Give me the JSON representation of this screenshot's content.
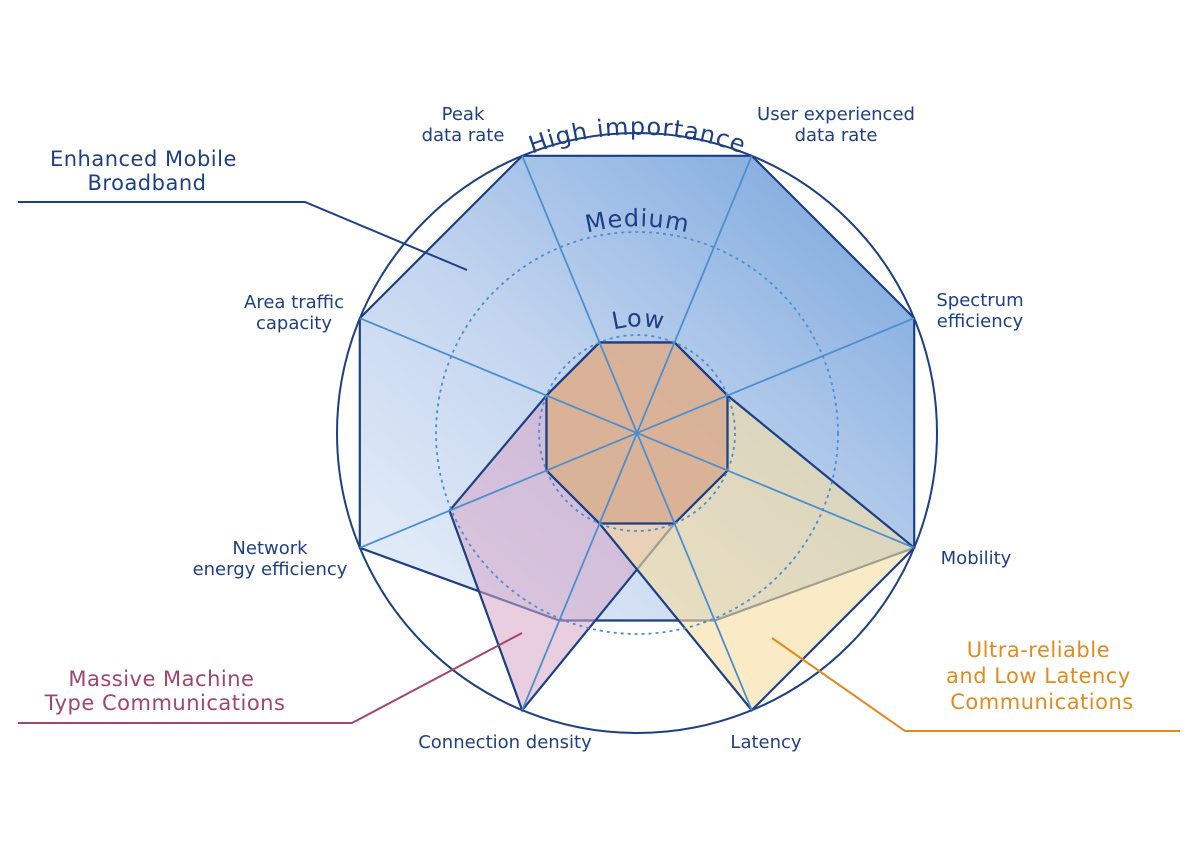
{
  "axes": [
    {
      "id": "peak",
      "lines": [
        "Peak",
        "data rate"
      ]
    },
    {
      "id": "user",
      "lines": [
        "User experienced",
        "data rate"
      ]
    },
    {
      "id": "spectrum",
      "lines": [
        "Spectrum",
        "efficiency"
      ]
    },
    {
      "id": "mobility",
      "lines": [
        "Mobility"
      ]
    },
    {
      "id": "latency",
      "lines": [
        "Latency"
      ]
    },
    {
      "id": "density",
      "lines": [
        "Connection density"
      ]
    },
    {
      "id": "energy",
      "lines": [
        "Network",
        "energy efficiency"
      ]
    },
    {
      "id": "area",
      "lines": [
        "Area traffic",
        "capacity"
      ]
    }
  ],
  "levels": {
    "low": "Low",
    "medium": "Medium",
    "high": "High importance"
  },
  "scenarios": {
    "embb": {
      "lines": [
        "Enhanced Mobile",
        "Broadband"
      ],
      "color": "#1c3f86",
      "fill": "#5a8fd6",
      "importance": {
        "peak": "high",
        "user": "high",
        "spectrum": "high",
        "mobility": "high",
        "latency": "medium",
        "density": "medium",
        "energy": "high",
        "area": "high"
      }
    },
    "mmtc": {
      "lines": [
        "Massive Machine",
        "Type Communications"
      ],
      "color": "#a0456f",
      "fill": "#d7a6c6",
      "importance": {
        "peak": "low",
        "user": "low",
        "spectrum": "low",
        "mobility": "low",
        "latency": "low",
        "density": "high",
        "energy": "medium",
        "area": "low"
      }
    },
    "urllc": {
      "lines": [
        "Ultra-reliable",
        "and Low Latency",
        "Communications"
      ],
      "color": "#e38a1e",
      "fill": "#f6dda0",
      "importance": {
        "peak": "low",
        "user": "low",
        "spectrum": "low",
        "mobility": "high",
        "latency": "high",
        "density": "low",
        "energy": "low",
        "area": "low"
      }
    }
  },
  "colors": {
    "outline": "#1c3f86",
    "spokes": "#4a8fd0",
    "dashed": "#4a8fd0"
  }
}
